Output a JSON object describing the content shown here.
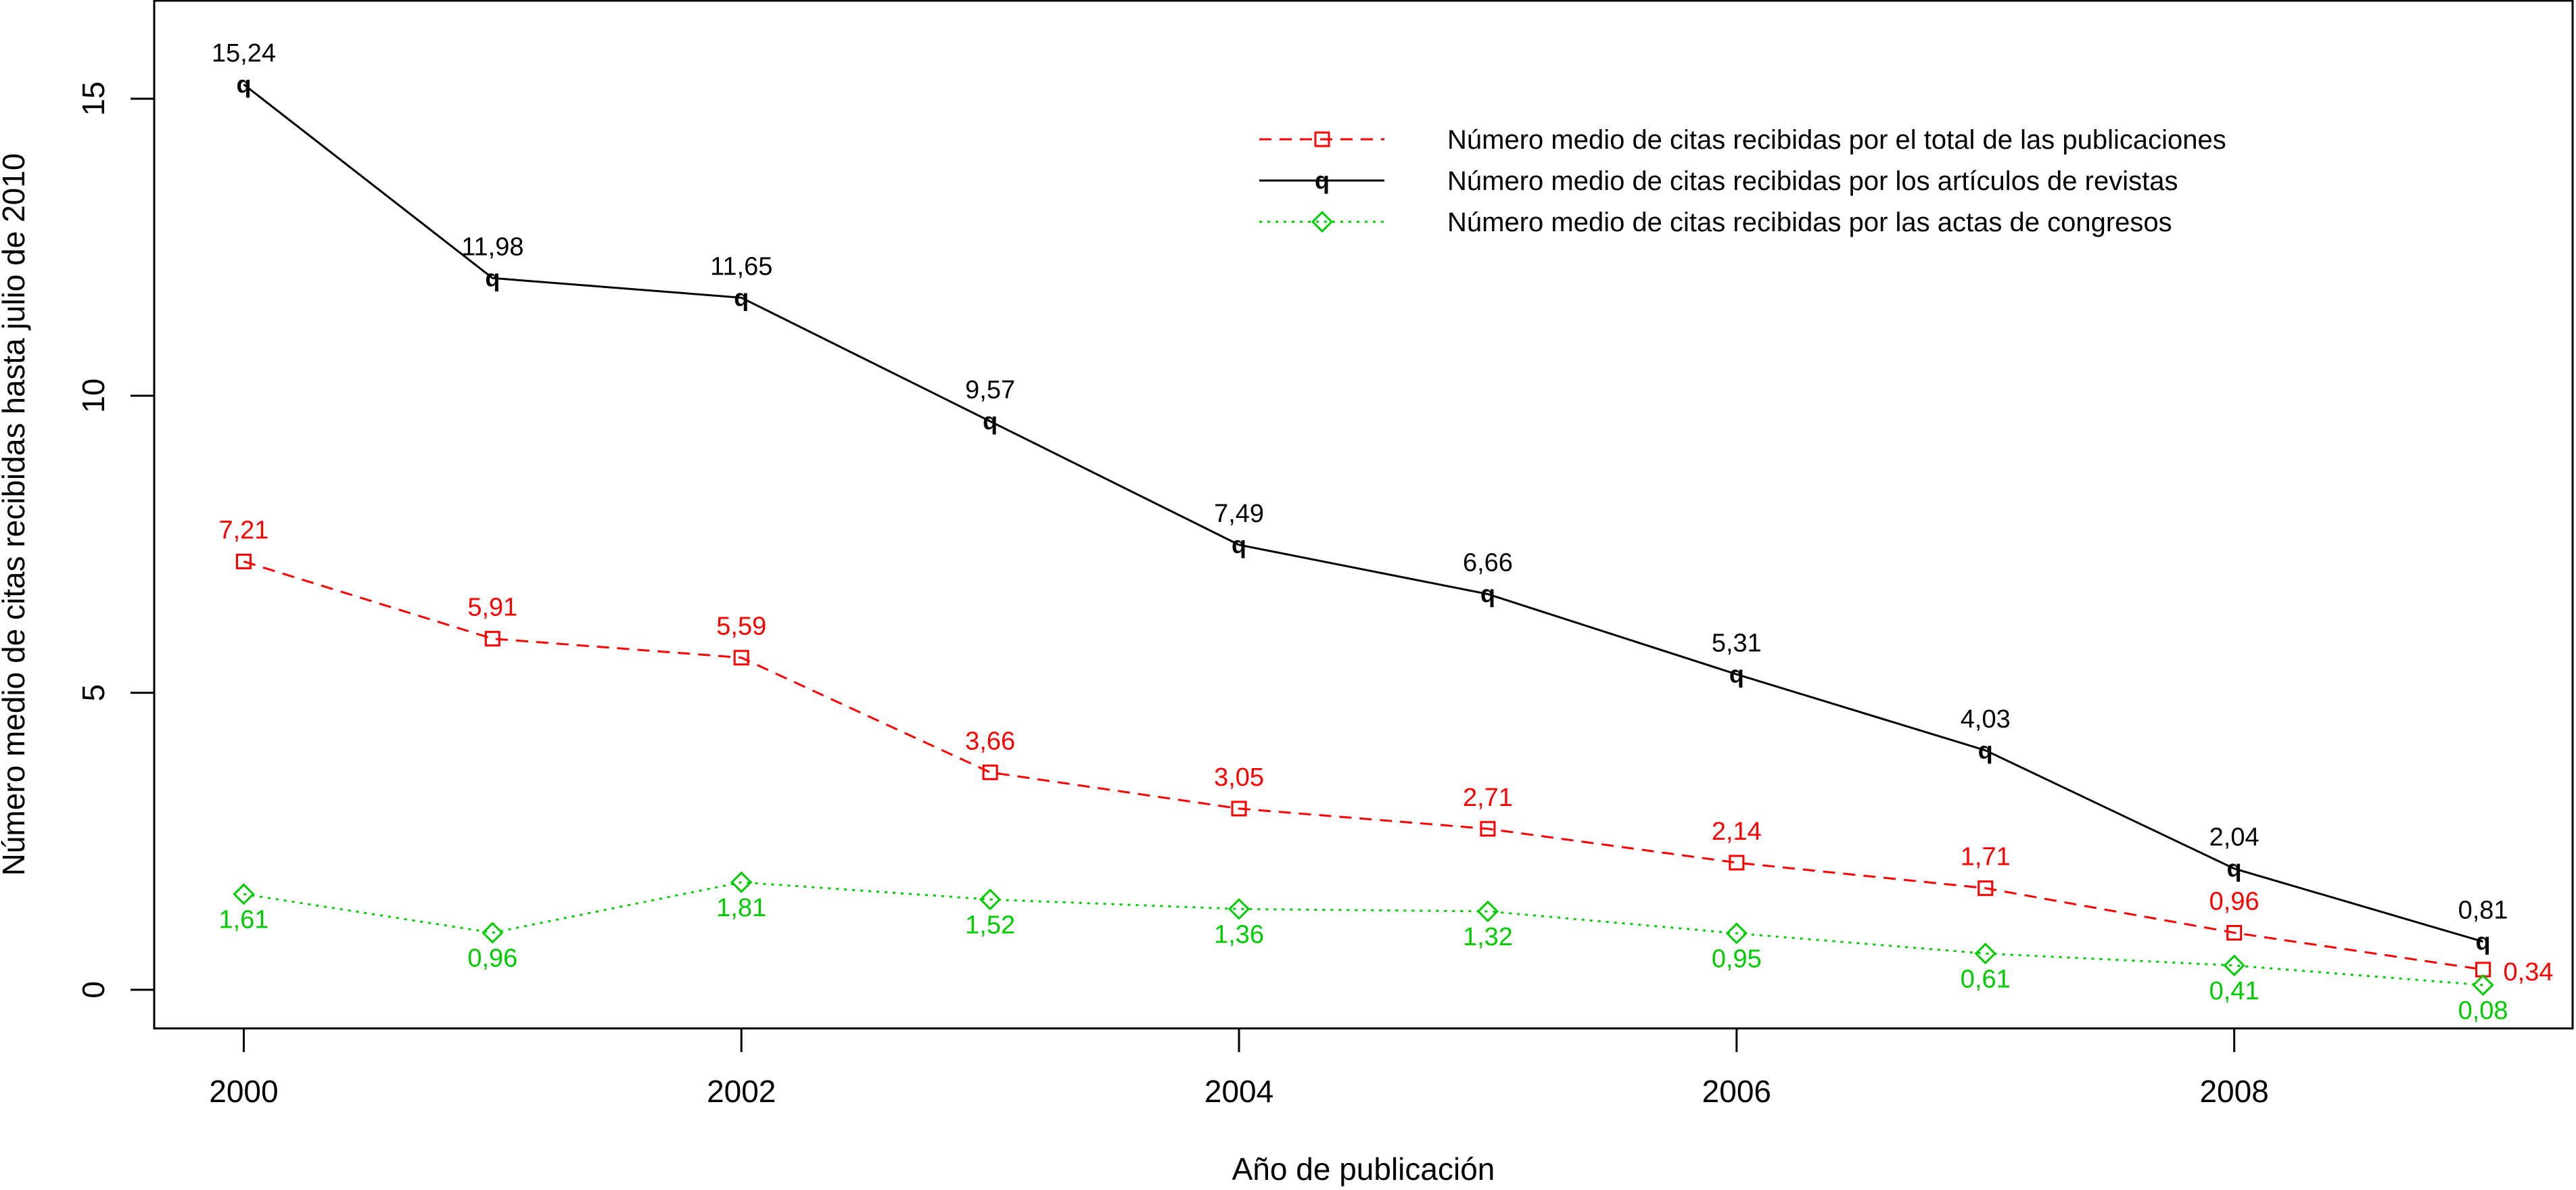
{
  "chart_data": {
    "type": "line",
    "title": "",
    "xlabel": "Año de publicación",
    "ylabel": "Número medio de citas recibidas hasta julio de 2010",
    "xlim": [
      1999.64,
      2009.36
    ],
    "ylim": [
      -0.65,
      16.65
    ],
    "x_ticks": [
      2000,
      2002,
      2004,
      2006,
      2008
    ],
    "x_tick_labels": [
      "2000",
      "2002",
      "2004",
      "2006",
      "2008"
    ],
    "y_ticks": [
      0,
      5,
      10,
      15
    ],
    "y_tick_labels": [
      "0",
      "5",
      "10",
      "15"
    ],
    "grid": false,
    "legend_position": "top-right",
    "x": [
      2000,
      2001,
      2002,
      2003,
      2004,
      2005,
      2006,
      2007,
      2008,
      2009
    ],
    "series": [
      {
        "key": "total",
        "name": "Número medio de citas recibidas por el total de las publicaciones",
        "color": "#ff0000",
        "line_style": "dashed",
        "marker": "square",
        "values": [
          7.21,
          5.91,
          5.59,
          3.66,
          3.05,
          2.71,
          2.14,
          1.71,
          0.96,
          0.34
        ],
        "labels": [
          "7,21",
          "5,91",
          "5,59",
          "3,66",
          "3,05",
          "2,71",
          "2,14",
          "1,71",
          "0,96",
          "0,34"
        ]
      },
      {
        "key": "revistas",
        "name": "Número medio de citas recibidas por los artículos de revistas",
        "color": "#000000",
        "line_style": "solid",
        "marker": "q",
        "values": [
          15.24,
          11.98,
          11.65,
          9.57,
          7.49,
          6.66,
          5.31,
          4.03,
          2.04,
          0.81
        ],
        "labels": [
          "15,24",
          "11,98",
          "11,65",
          "9,57",
          "7,49",
          "6,66",
          "5,31",
          "4,03",
          "2,04",
          "0,81"
        ]
      },
      {
        "key": "congresos",
        "name": "Número medio de citas recibidas por las actas de congresos",
        "color": "#00cd00",
        "line_style": "dotted",
        "marker": "diamond",
        "values": [
          1.61,
          0.96,
          1.81,
          1.52,
          1.36,
          1.32,
          0.95,
          0.61,
          0.41,
          0.08
        ],
        "labels": [
          "1,61",
          "0,96",
          "1,81",
          "1,52",
          "1,36",
          "1,32",
          "0,95",
          "0,61",
          "0,41",
          "0,08"
        ]
      }
    ]
  }
}
